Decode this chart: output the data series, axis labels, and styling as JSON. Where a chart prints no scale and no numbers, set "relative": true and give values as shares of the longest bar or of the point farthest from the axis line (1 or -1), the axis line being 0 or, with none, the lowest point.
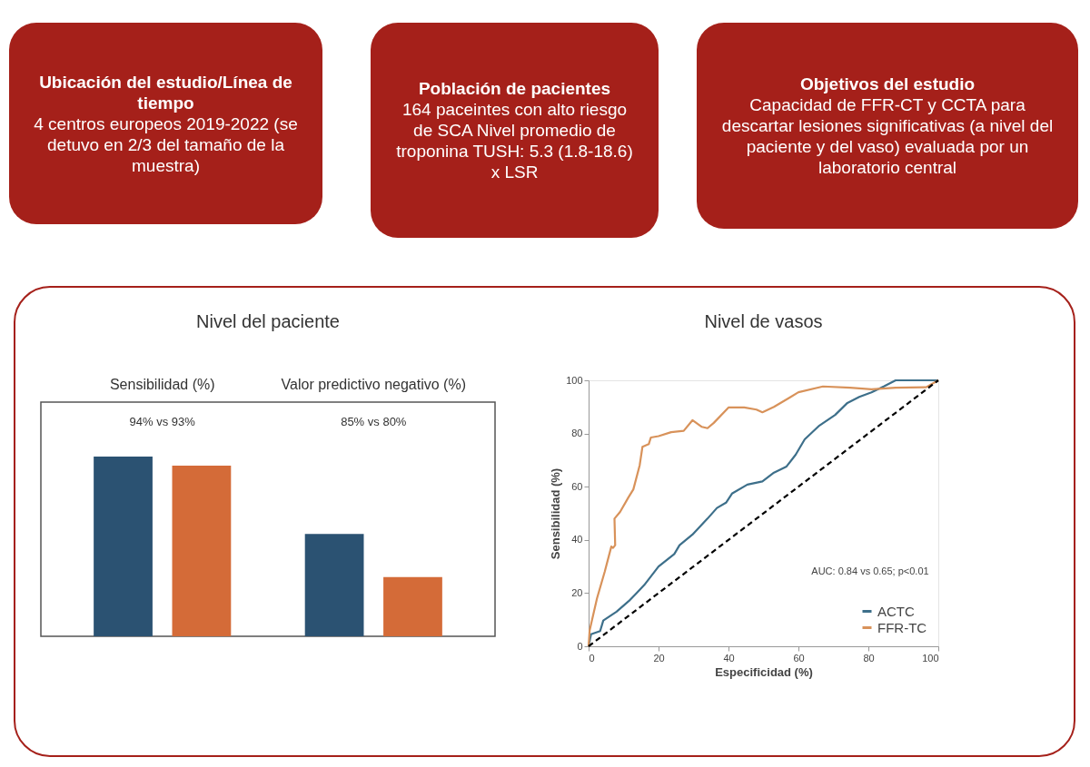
{
  "chart_data": [
    {
      "type": "other",
      "title": "Ubicación del estudio/Línea de tiempo",
      "annotations": [
        "4 centros europeos 2019-2022 (se detuvo en 2/3 del tamaño de la muestra)"
      ]
    },
    {
      "type": "other",
      "title": "Población de pacientes",
      "annotations": [
        "164 paceintes con alto riesgo de SCA Nivel promedio de troponina TUSH: 5.3 (1.8-18.6) x LSR"
      ]
    },
    {
      "type": "other",
      "title": "Objetivos del estudio",
      "annotations": [
        "Capacidad de FFR-CT y CCTA para descartar lesiones significativas (a nivel del paciente y del vaso) evaluada por un laboratorio central"
      ]
    },
    {
      "type": "bar",
      "title": "Nivel del paciente",
      "relative": true,
      "categories": [
        "Sensibilidad (%)",
        "Valor predictivo negativo (%)"
      ],
      "series": [
        {
          "color": "#2b5272",
          "values": [
            1,
            0.57
          ]
        },
        {
          "color": "#d46b38",
          "values": [
            0.95,
            0.33
          ]
        }
      ],
      "annotations": [
        "94% vs 93%",
        "85% vs 80%"
      ]
    },
    {
      "type": "line",
      "title": "Nivel de vasos",
      "xlabel": "Especificidad (%)",
      "ylabel": "Sensibilidad (%)",
      "xlim": [
        0,
        100
      ],
      "ylim": [
        0,
        100
      ],
      "xticks": [
        0,
        20,
        40,
        60,
        80,
        100
      ],
      "yticks": [
        0,
        20,
        40,
        60,
        80,
        100
      ],
      "legend": "bottom right",
      "series": [
        {
          "name": "ACTC",
          "color": "#3d6f8a",
          "x": [
            0,
            0.7,
            3.3,
            4.2,
            8,
            11.5,
            13.7,
            15.9,
            20,
            24.5,
            26,
            29.7,
            34,
            36.7,
            39.3,
            41,
            45.4,
            49.7,
            53,
            56.6,
            59.2,
            61.8,
            66,
            70.5,
            74,
            77.4,
            80.9,
            84.4,
            87.8,
            100
          ],
          "values": [
            0,
            4.5,
            5.7,
            9.7,
            13,
            17,
            20,
            23,
            30,
            34.7,
            38,
            42,
            48,
            52,
            54,
            57.4,
            60.8,
            62,
            65.3,
            67.6,
            72,
            77.8,
            83,
            87,
            91.5,
            93.8,
            95.5,
            97.7,
            100,
            100
          ]
        },
        {
          "name": "FFR-TC",
          "color": "#d8925a",
          "x": [
            0,
            0.3,
            2.4,
            4.6,
            6.5,
            7,
            7.6,
            7.4,
            9,
            11.4,
            12.8,
            14.6,
            15.4,
            17.2,
            17.8,
            20,
            23.6,
            27.2,
            29.7,
            32.4,
            34,
            35.8,
            40,
            44.5,
            48,
            49.7,
            53,
            57.5,
            60,
            67,
            74.8,
            80.9,
            87.8,
            96.5,
            100
          ],
          "values": [
            0,
            6,
            18,
            28,
            37.5,
            37,
            38,
            48,
            50.5,
            56,
            59,
            68,
            75,
            76,
            78.5,
            79,
            80.5,
            81,
            85,
            82.5,
            82,
            84,
            89.8,
            89.8,
            89,
            88,
            90,
            93.5,
            95.5,
            97.7,
            97.2,
            96.6,
            97.2,
            97.4,
            100
          ]
        },
        {
          "color": "#000000",
          "line_style": "dashed",
          "x": [
            0,
            100
          ],
          "values": [
            0,
            100
          ]
        }
      ],
      "annotations": [
        "AUC: 0.84 vs 0.65; p<0.01"
      ]
    }
  ]
}
